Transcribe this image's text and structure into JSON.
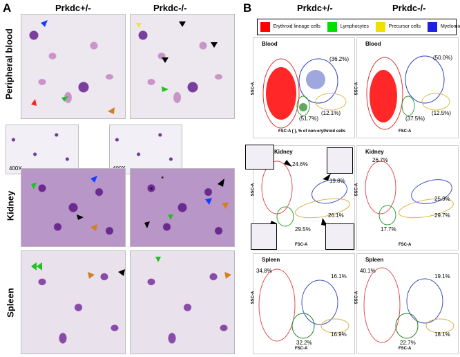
{
  "panelA": {
    "letter": "A",
    "col1": "Prkdc+/-",
    "col2": "Prkdc-/-",
    "rows": [
      "Peripheral blood",
      "Kidney",
      "Spleen"
    ],
    "mag1": "400X",
    "mag2": "400X"
  },
  "panelB": {
    "letter": "B",
    "col1": "Prkdc+/-",
    "col2": "Prkdc-/-",
    "legend": [
      {
        "label": "Erythroid lineage cells",
        "color": "#ff0000"
      },
      {
        "label": "Lymphocytes",
        "color": "#00e000"
      },
      {
        "label": "Precursor cells",
        "color": "#f0e000"
      },
      {
        "label": "Myelomonocytes",
        "color": "#2020e0"
      }
    ],
    "plots": {
      "blood_het": {
        "title": "Blood",
        "p_myelo": "(36.2%)",
        "p_prec": "(12.1%)",
        "p_lym": "(51.7%)"
      },
      "blood_ko": {
        "title": "Blood",
        "p_myelo": "(50.0%)",
        "p_prec": "(12.5%)",
        "p_lym": "(37.5%)"
      },
      "kidney_het": {
        "title": "Kidney",
        "p_ery": "24.6%",
        "p_myelo": "19.8%",
        "p_prec": "26.1%",
        "p_lym": "29.5%"
      },
      "kidney_ko": {
        "title": "Kidney",
        "p_ery": "26.7%",
        "p_myelo": "25.9%",
        "p_prec": "29.7%",
        "p_lym": "17.7%"
      },
      "spleen_het": {
        "title": "Spleen",
        "p_ery": "34.8%",
        "p_myelo": "16.1%",
        "p_prec": "16.9%",
        "p_lym": "32.2%"
      },
      "spleen_ko": {
        "title": "Spleen",
        "p_ery": "40.1%",
        "p_myelo": "19.1%",
        "p_prec": "18.1%",
        "p_lym": "22.7%"
      }
    },
    "ssc": "SSC-A",
    "fsc": "FSC-A",
    "blood_caption": "FSC-A (      ), % of non-erythroid cells"
  }
}
